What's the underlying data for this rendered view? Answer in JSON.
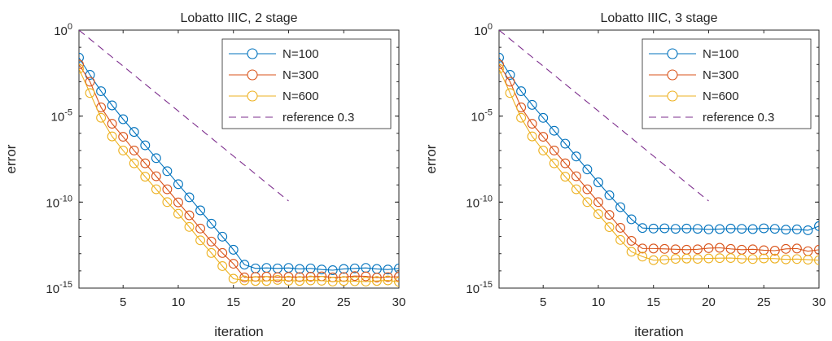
{
  "chart_data": [
    {
      "type": "line",
      "title": "Lobatto IIIC, 2 stage",
      "xlabel": "iteration",
      "ylabel": "error",
      "xlim": [
        1,
        30
      ],
      "ylim": [
        1e-15,
        1
      ],
      "yscale": "log",
      "grid": false,
      "legend_position": "top-right",
      "xticks": [
        "5",
        "10",
        "15",
        "20",
        "25",
        "30"
      ],
      "yticks": [
        {
          "base": "10",
          "exp": "0"
        },
        {
          "base": "10",
          "exp": "-5"
        },
        {
          "base": "10",
          "exp": "-10"
        },
        {
          "base": "10",
          "exp": "-15"
        }
      ],
      "series": [
        {
          "name": "N=100",
          "color": "#0072BD",
          "marker": "circle",
          "x": [
            1,
            2,
            3,
            4,
            5,
            6,
            7,
            8,
            9,
            10,
            11,
            12,
            13,
            14,
            15,
            16,
            17,
            18,
            19,
            20,
            21,
            22,
            23,
            24,
            25,
            26,
            27,
            28,
            29,
            30
          ],
          "y": [
            0.025,
            0.0025,
            0.00028,
            4.2e-05,
            6.6e-06,
            1.2e-06,
            2e-07,
            3.6e-08,
            6.3e-09,
            1.1e-09,
            1.9e-10,
            3.3e-11,
            5.6e-12,
            9.8e-13,
            1.7e-13,
            2.3e-14,
            1.4e-14,
            1.5e-14,
            1.4e-14,
            1.5e-14,
            1.3e-14,
            1.4e-14,
            1.2e-14,
            1.1e-14,
            1.3e-14,
            1.4e-14,
            1.5e-14,
            1.3e-14,
            1.2e-14,
            1.4e-14
          ]
        },
        {
          "name": "N=300",
          "color": "#D95319",
          "marker": "circle",
          "x": [
            1,
            2,
            3,
            4,
            5,
            6,
            7,
            8,
            9,
            10,
            11,
            12,
            13,
            14,
            15,
            16,
            17,
            18,
            19,
            20,
            21,
            22,
            23,
            24,
            25,
            26,
            27,
            28,
            29,
            30
          ],
          "y": [
            0.01,
            0.001,
            3.2e-05,
            3.6e-06,
            6.3e-07,
            1e-07,
            1.8e-08,
            3.2e-09,
            5.6e-10,
            9.6e-11,
            1.7e-11,
            2.9e-12,
            5.1e-13,
            1.1e-13,
            2.6e-14,
            4.2e-15,
            4.5e-15,
            4.7e-15,
            4.3e-15,
            4.5e-15,
            4.4e-15,
            4.6e-15,
            4.8e-15,
            4.2e-15,
            4.4e-15,
            5e-15,
            4.8e-15,
            4.1e-15,
            4.4e-15,
            4.6e-15
          ]
        },
        {
          "name": "N=600",
          "color": "#EDB120",
          "marker": "circle",
          "x": [
            1,
            2,
            3,
            4,
            5,
            6,
            7,
            8,
            9,
            10,
            11,
            12,
            13,
            14,
            15,
            16,
            17,
            18,
            19,
            20,
            21,
            22,
            23,
            24,
            25,
            26,
            27,
            28,
            29,
            30
          ],
          "y": [
            0.0056,
            0.00022,
            8e-06,
            6.6e-07,
            1e-07,
            1.8e-08,
            3e-09,
            5.6e-10,
            1e-10,
            2.1e-11,
            3.6e-12,
            6e-13,
            1.1e-13,
            1.9e-14,
            3.5e-15,
            2.8e-15,
            2.6e-15,
            2.6e-15,
            3e-15,
            2.7e-15,
            2.6e-15,
            2.8e-15,
            2.7e-15,
            2.4e-15,
            2.6e-15,
            2.5e-15,
            2.4e-15,
            2.6e-15,
            2.8e-15,
            2.3e-15
          ]
        },
        {
          "name": "reference 0.3",
          "color": "#7E2F8E",
          "marker": "none",
          "dashed": true,
          "x": [
            1,
            20
          ],
          "y": [
            1,
            1.16e-10
          ]
        }
      ]
    },
    {
      "type": "line",
      "title": "Lobatto IIIC, 3 stage",
      "xlabel": "iteration",
      "ylabel": "error",
      "xlim": [
        1,
        30
      ],
      "ylim": [
        1e-15,
        1
      ],
      "yscale": "log",
      "grid": false,
      "legend_position": "top-right",
      "xticks": [
        "5",
        "10",
        "15",
        "20",
        "25",
        "30"
      ],
      "yticks": [
        {
          "base": "10",
          "exp": "0"
        },
        {
          "base": "10",
          "exp": "-5"
        },
        {
          "base": "10",
          "exp": "-10"
        },
        {
          "base": "10",
          "exp": "-15"
        }
      ],
      "series": [
        {
          "name": "N=100",
          "color": "#0072BD",
          "marker": "circle",
          "x": [
            1,
            2,
            3,
            4,
            5,
            6,
            7,
            8,
            9,
            10,
            11,
            12,
            13,
            14,
            15,
            16,
            17,
            18,
            19,
            20,
            21,
            22,
            23,
            24,
            25,
            26,
            27,
            28,
            29,
            30
          ],
          "y": [
            0.025,
            0.0025,
            0.00028,
            4.5e-05,
            7.9e-06,
            1.4e-06,
            2.5e-07,
            4.5e-08,
            7.9e-09,
            1.4e-09,
            2.5e-10,
            5.1e-11,
            1e-11,
            3.1e-12,
            2.9e-12,
            3e-12,
            2.8e-12,
            2.9e-12,
            2.8e-12,
            2.6e-12,
            2.7e-12,
            2.9e-12,
            2.8e-12,
            2.7e-12,
            3e-12,
            2.8e-12,
            2.5e-12,
            2.6e-12,
            2.3e-12,
            4e-12
          ]
        },
        {
          "name": "N=300",
          "color": "#D95319",
          "marker": "circle",
          "x": [
            1,
            2,
            3,
            4,
            5,
            6,
            7,
            8,
            9,
            10,
            11,
            12,
            13,
            14,
            15,
            16,
            17,
            18,
            19,
            20,
            21,
            22,
            23,
            24,
            25,
            26,
            27,
            28,
            29,
            30
          ],
          "y": [
            0.01,
            0.001,
            3.2e-05,
            3.6e-06,
            6.3e-07,
            1e-07,
            1.8e-08,
            3.2e-09,
            5.6e-10,
            1e-10,
            1.8e-11,
            3.2e-12,
            5.6e-13,
            2e-13,
            2e-13,
            1.9e-13,
            1.8e-13,
            1.7e-13,
            1.8e-13,
            2.1e-13,
            2.2e-13,
            1.9e-13,
            1.7e-13,
            1.8e-13,
            1.6e-13,
            1.5e-13,
            1.9e-13,
            2e-13,
            1.4e-13,
            1.7e-13
          ]
        },
        {
          "name": "N=600",
          "color": "#EDB120",
          "marker": "circle",
          "x": [
            1,
            2,
            3,
            4,
            5,
            6,
            7,
            8,
            9,
            10,
            11,
            12,
            13,
            14,
            15,
            16,
            17,
            18,
            19,
            20,
            21,
            22,
            23,
            24,
            25,
            26,
            27,
            28,
            29,
            30
          ],
          "y": [
            0.0056,
            0.00022,
            8e-06,
            6.6e-07,
            1e-07,
            1.8e-08,
            3e-09,
            5.6e-10,
            1e-10,
            2e-11,
            3.5e-12,
            6.3e-13,
            1.3e-13,
            6.8e-14,
            4.2e-14,
            4.5e-14,
            5e-14,
            5.2e-14,
            5e-14,
            5.3e-14,
            5.5e-14,
            5.6e-14,
            5.1e-14,
            4.9e-14,
            5.3e-14,
            5.2e-14,
            4.7e-14,
            4.9e-14,
            4.5e-14,
            4.2e-14
          ]
        },
        {
          "name": "reference 0.3",
          "color": "#7E2F8E",
          "marker": "none",
          "dashed": true,
          "x": [
            1,
            20
          ],
          "y": [
            1,
            1.16e-10
          ]
        }
      ]
    }
  ]
}
